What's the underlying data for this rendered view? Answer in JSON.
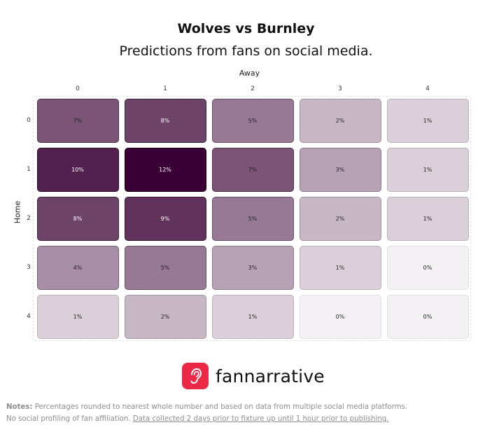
{
  "chart_data": {
    "type": "heatmap",
    "title": "Wolves vs Burnley",
    "subtitle": "Predictions from fans on social media.",
    "xlabel": "Away",
    "ylabel": "Home",
    "x_categories": [
      "0",
      "1",
      "2",
      "3",
      "4"
    ],
    "y_categories": [
      "0",
      "1",
      "2",
      "3",
      "4"
    ],
    "value_labels": [
      [
        "7%",
        "8%",
        "5%",
        "2%",
        "1%"
      ],
      [
        "10%",
        "12%",
        "7%",
        "3%",
        "1%"
      ],
      [
        "8%",
        "9%",
        "5%",
        "2%",
        "1%"
      ],
      [
        "4%",
        "5%",
        "3%",
        "1%",
        "0%"
      ],
      [
        "1%",
        "2%",
        "1%",
        "0%",
        "0%"
      ]
    ],
    "values": [
      [
        7,
        8,
        5,
        2,
        1
      ],
      [
        10,
        12,
        7,
        3,
        1
      ],
      [
        8,
        9,
        5,
        2,
        1
      ],
      [
        4,
        5,
        3,
        1,
        0
      ],
      [
        1,
        2,
        1,
        0,
        0
      ]
    ],
    "colors": {
      "max": "#3a0035",
      "min": "#f4f1f4"
    }
  },
  "branding": {
    "logo_text": "fannarrative",
    "logo_color": "#ec2847",
    "logo_icon": "ear-icon"
  },
  "notes": {
    "label": "Notes:",
    "line1": "Percentages rounded to nearest whole number and based on data from multiple social media platforms.",
    "line2_plain": "No social profiling of fan affiliation.",
    "line2_underlined": "Data collected 2 days prior to fixture up until 1 hour prior to publishing."
  }
}
